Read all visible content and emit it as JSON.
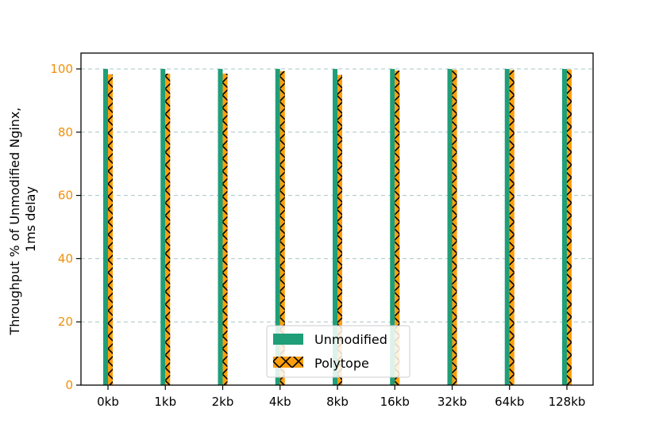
{
  "chart_data": {
    "type": "bar",
    "title": "",
    "xlabel": "",
    "ylabel_lines": [
      "Throughput % of Unmodified Nginx,",
      "1ms delay"
    ],
    "categories": [
      "0kb",
      "1kb",
      "2kb",
      "4kb",
      "8kb",
      "16kb",
      "32kb",
      "64kb",
      "128kb"
    ],
    "series": [
      {
        "name": "Unmodified",
        "values": [
          100,
          100,
          100,
          100,
          100,
          100,
          100,
          100,
          100
        ],
        "color": "#1f9e78",
        "hatch": "none"
      },
      {
        "name": "Polytope",
        "values": [
          98.3,
          98.5,
          98.5,
          99.3,
          98.1,
          99.5,
          99.7,
          99.6,
          99.8
        ],
        "color": "#ff9e0b",
        "hatch": "x"
      }
    ],
    "ylim": [
      0,
      100
    ],
    "yticks": [
      0,
      20,
      40,
      60,
      80,
      100
    ],
    "grid": true,
    "legend_position": "bottom-center",
    "colors": {
      "ytick": "#f0900a",
      "grid": "#a9c4c4",
      "hatch": "#000000"
    }
  }
}
